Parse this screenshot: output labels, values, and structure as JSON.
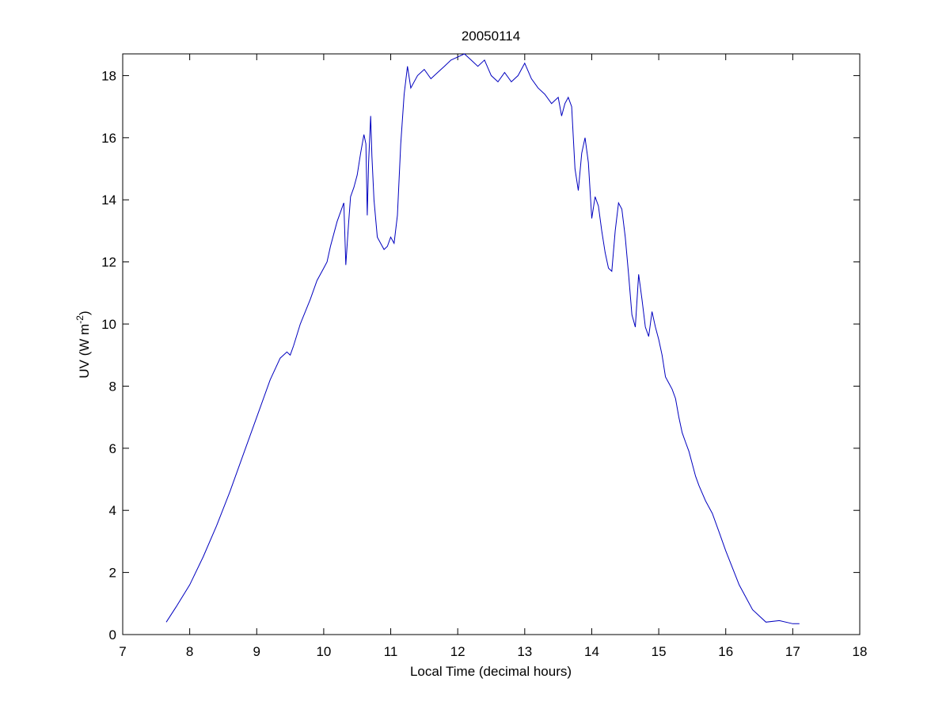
{
  "chart_data": {
    "type": "line",
    "title": "20050114",
    "xlabel": "Local Time (decimal hours)",
    "ylabel": "UV (W m",
    "ylabel_exp": "-2",
    "ylabel_close": ")",
    "xlim": [
      7,
      18
    ],
    "ylim": [
      0,
      18.7
    ],
    "xticks": [
      7,
      8,
      9,
      10,
      11,
      12,
      13,
      14,
      15,
      16,
      17,
      18
    ],
    "yticks": [
      0,
      2,
      4,
      6,
      8,
      10,
      12,
      14,
      16,
      18
    ],
    "grid": false,
    "line_color": "#0000bf",
    "series": [
      {
        "x": [
          7.65,
          7.8,
          8.0,
          8.2,
          8.4,
          8.6,
          8.8,
          9.0,
          9.2,
          9.35,
          9.45,
          9.5,
          9.55,
          9.65,
          9.8,
          9.9,
          10.0,
          10.05,
          10.1,
          10.2,
          10.3,
          10.33,
          10.37,
          10.4,
          10.45,
          10.5,
          10.55,
          10.6,
          10.63,
          10.65,
          10.67,
          10.7,
          10.72,
          10.75,
          10.8,
          10.85,
          10.9,
          10.95,
          11.0,
          11.05,
          11.1,
          11.15,
          11.2,
          11.25,
          11.3,
          11.4,
          11.5,
          11.6,
          11.7,
          11.8,
          11.9,
          12.0,
          12.1,
          12.2,
          12.3,
          12.4,
          12.5,
          12.6,
          12.7,
          12.8,
          12.9,
          13.0,
          13.1,
          13.2,
          13.3,
          13.4,
          13.5,
          13.55,
          13.6,
          13.65,
          13.7,
          13.75,
          13.8,
          13.85,
          13.9,
          13.95,
          14.0,
          14.05,
          14.1,
          14.15,
          14.2,
          14.25,
          14.3,
          14.35,
          14.4,
          14.45,
          14.5,
          14.55,
          14.6,
          14.65,
          14.7,
          14.75,
          14.8,
          14.85,
          14.9,
          14.95,
          15.0,
          15.05,
          15.1,
          15.15,
          15.2,
          15.25,
          15.3,
          15.35,
          15.4,
          15.45,
          15.5,
          15.55,
          15.6,
          15.7,
          15.8,
          15.9,
          16.0,
          16.2,
          16.4,
          16.6,
          16.8,
          17.0,
          17.1
        ],
        "y": [
          0.4,
          0.9,
          1.6,
          2.5,
          3.5,
          4.6,
          5.8,
          7.0,
          8.2,
          8.9,
          9.1,
          9.0,
          9.3,
          10.0,
          10.8,
          11.4,
          11.8,
          12.0,
          12.5,
          13.3,
          13.9,
          11.9,
          13.2,
          14.1,
          14.4,
          14.8,
          15.5,
          16.1,
          15.8,
          13.5,
          15.2,
          16.7,
          15.4,
          14.0,
          12.8,
          12.6,
          12.4,
          12.5,
          12.8,
          12.6,
          13.5,
          15.8,
          17.4,
          18.3,
          17.6,
          18.0,
          18.2,
          17.9,
          18.1,
          18.3,
          18.5,
          18.6,
          18.7,
          18.5,
          18.3,
          18.5,
          18.0,
          17.8,
          18.1,
          17.8,
          18.0,
          18.4,
          17.9,
          17.6,
          17.4,
          17.1,
          17.3,
          16.7,
          17.1,
          17.3,
          17.0,
          15.0,
          14.3,
          15.5,
          16.0,
          15.2,
          13.4,
          14.1,
          13.8,
          13.0,
          12.3,
          11.8,
          11.7,
          13.0,
          13.9,
          13.7,
          12.8,
          11.6,
          10.3,
          9.9,
          11.6,
          10.8,
          9.9,
          9.6,
          10.4,
          9.9,
          9.5,
          9.0,
          8.3,
          8.1,
          7.9,
          7.6,
          7.0,
          6.5,
          6.2,
          5.9,
          5.5,
          5.1,
          4.8,
          4.3,
          3.9,
          3.3,
          2.7,
          1.6,
          0.8,
          0.4,
          0.45,
          0.35,
          0.35
        ]
      }
    ]
  }
}
